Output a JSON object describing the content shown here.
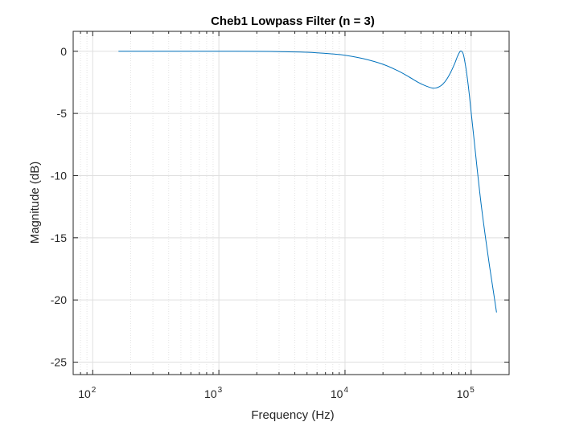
{
  "chart_data": {
    "type": "line",
    "title": "Cheb1 Lowpass Filter (n = 3)",
    "xlabel": "Frequency (Hz)",
    "ylabel": "Magnitude (dB)",
    "xscale": "log",
    "xlim": [
      70,
      200000
    ],
    "ylim": [
      -26,
      1.6
    ],
    "xticks": [
      100,
      1000,
      10000,
      100000
    ],
    "xtick_labels": [
      {
        "base": "10",
        "exp": "2"
      },
      {
        "base": "10",
        "exp": "3"
      },
      {
        "base": "10",
        "exp": "4"
      },
      {
        "base": "10",
        "exp": "5"
      }
    ],
    "yticks": [
      0,
      -5,
      -10,
      -15,
      -20,
      -25
    ],
    "ytick_labels": [
      "0",
      "-5",
      "-10",
      "-15",
      "-20",
      "-25"
    ],
    "grid": true,
    "line_color": "#0072bd",
    "series": [
      {
        "x": [
          160,
          300,
          600,
          1000,
          2000,
          3000,
          5000,
          8000,
          10000,
          14000,
          20000,
          26000,
          32000,
          38000,
          44000,
          50000,
          56000,
          62000,
          68000,
          74000,
          78000,
          82000,
          85000,
          87000,
          89000,
          92000,
          96000,
          100000,
          106000,
          112000,
          120000,
          130000,
          140000,
          150000,
          159000
        ],
        "y": [
          0,
          0,
          0,
          0,
          -0.01,
          -0.03,
          -0.08,
          -0.22,
          -0.32,
          -0.6,
          -1.05,
          -1.55,
          -2.05,
          -2.5,
          -2.8,
          -2.97,
          -2.85,
          -2.45,
          -1.8,
          -1.0,
          -0.4,
          0,
          -0.05,
          -0.3,
          -0.8,
          -1.7,
          -3.2,
          -4.9,
          -7.3,
          -9.6,
          -12.3,
          -15.0,
          -17.3,
          -19.3,
          -21.0
        ]
      }
    ]
  }
}
